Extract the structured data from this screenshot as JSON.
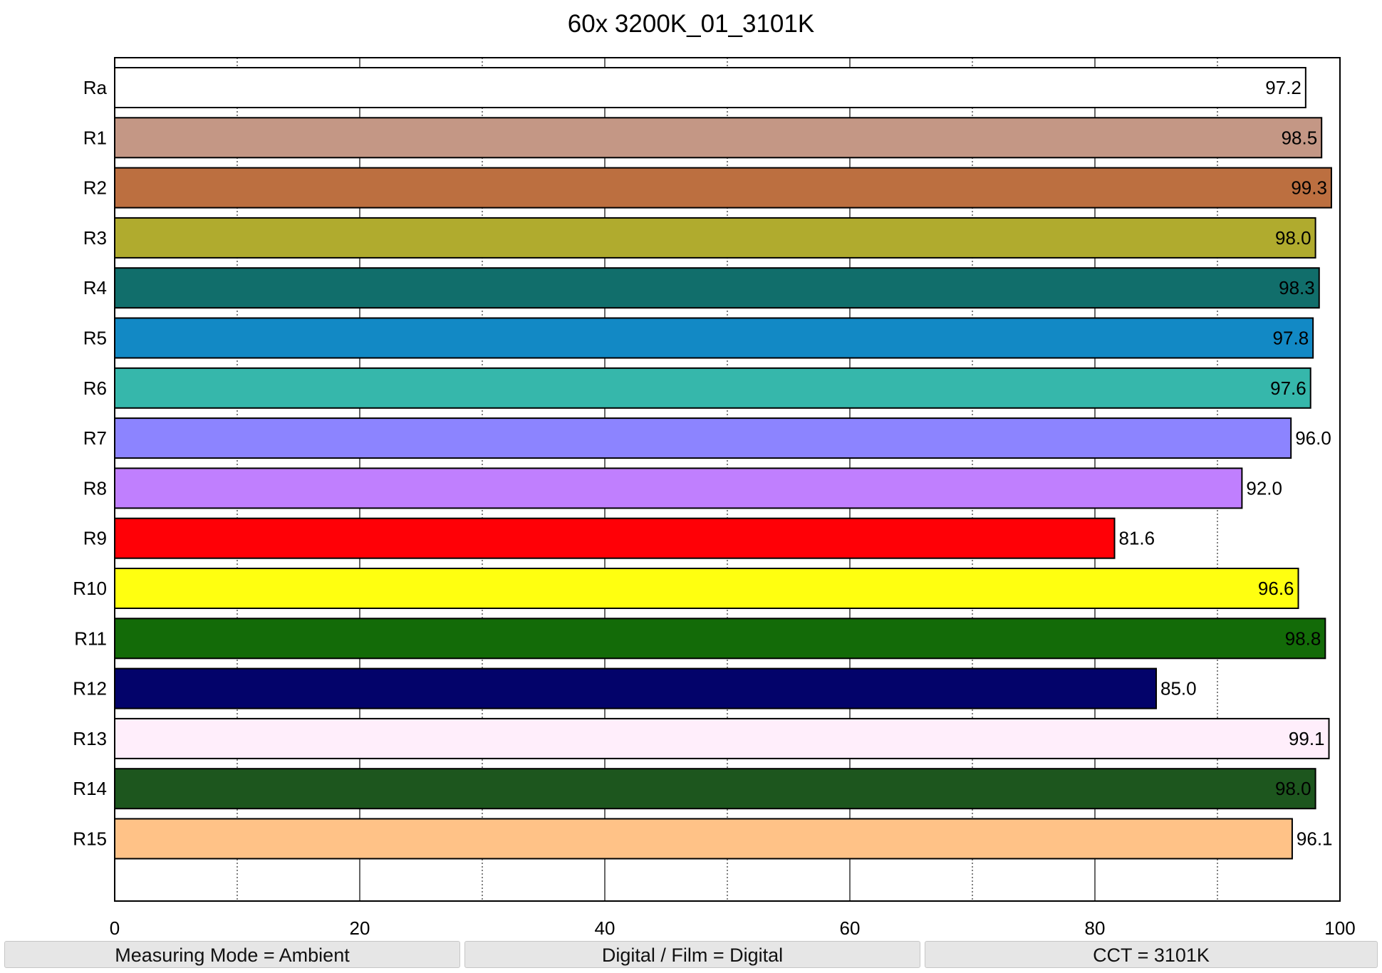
{
  "chart_data": {
    "type": "bar",
    "orientation": "horizontal",
    "title": "60x 3200K_01_3101K",
    "xlabel": "",
    "ylabel": "",
    "xlim": [
      0,
      100
    ],
    "x_ticks": [
      "0",
      "20",
      "40",
      "60",
      "80",
      "100"
    ],
    "grid": "vertical major and minor",
    "categories": [
      "Ra",
      "R1",
      "R2",
      "R3",
      "R4",
      "R5",
      "R6",
      "R7",
      "R8",
      "R9",
      "R10",
      "R11",
      "R12",
      "R13",
      "R14",
      "R15"
    ],
    "values": [
      97.2,
      98.5,
      99.3,
      98.0,
      98.3,
      97.8,
      97.6,
      96.0,
      92.0,
      81.6,
      96.6,
      98.8,
      85.0,
      99.1,
      98.0,
      96.1
    ],
    "value_labels": [
      "97.2",
      "98.5",
      "99.3",
      "98.0",
      "98.3",
      "97.8",
      "97.6",
      "96.0",
      "92.0",
      "81.6",
      "96.6",
      "98.8",
      "85.0",
      "99.1",
      "98.0",
      "96.1"
    ],
    "colors": [
      "#ffffff",
      "#c49785",
      "#bc6f40",
      "#b0ab2e",
      "#116e6b",
      "#1289c5",
      "#36b7ab",
      "#8c84ff",
      "#c07ffe",
      "#ff0006",
      "#ffff10",
      "#136b08",
      "#03036a",
      "#ffeefb",
      "#1d561e",
      "#ffc287"
    ]
  },
  "status_bar": {
    "measuring_mode": "Measuring Mode = Ambient",
    "digital_film": "Digital / Film = Digital",
    "cct": "CCT = 3101K"
  }
}
